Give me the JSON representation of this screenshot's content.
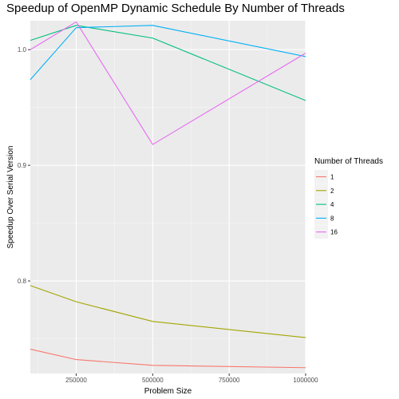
{
  "chart_data": {
    "type": "line",
    "title": "Speedup of OpenMP Dynamic Schedule By Number of Threads",
    "xlabel": "Problem Size",
    "ylabel": "Speedup Over Serial Version",
    "xlim": [
      100000,
      1000000
    ],
    "ylim": [
      0.72,
      1.025
    ],
    "x_ticks": [
      250000,
      500000,
      750000,
      1000000
    ],
    "x_tick_labels": [
      "250000",
      "500000",
      "750000",
      "1000000"
    ],
    "y_ticks": [
      0.8,
      0.9,
      1.0
    ],
    "y_tick_labels": [
      "0.8",
      "0.9",
      "1.0"
    ],
    "x": [
      100000,
      250000,
      500000,
      1000000
    ],
    "grid": true,
    "legend": {
      "title": "Number of Threads",
      "position": "right"
    },
    "series": [
      {
        "name": "1",
        "color": "#F8766D",
        "values": [
          0.741,
          0.732,
          0.727,
          0.725
        ]
      },
      {
        "name": "2",
        "color": "#A3A500",
        "values": [
          0.796,
          0.782,
          0.765,
          0.751
        ]
      },
      {
        "name": "4",
        "color": "#00BF7D",
        "values": [
          1.008,
          1.021,
          1.01,
          0.956
        ]
      },
      {
        "name": "8",
        "color": "#00B0F6",
        "values": [
          0.974,
          1.019,
          1.021,
          0.994
        ]
      },
      {
        "name": "16",
        "color": "#E76BF3",
        "values": [
          1.0,
          1.024,
          0.918,
          0.997
        ]
      }
    ]
  }
}
